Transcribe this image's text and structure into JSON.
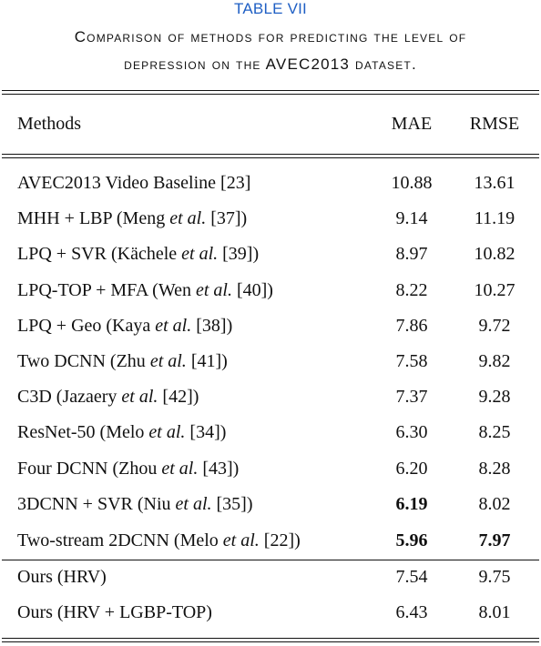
{
  "caption": {
    "label": "TABLE VII",
    "line1": "Comparison of methods for predicting the level of",
    "line2": "depression on the AVEC2013 dataset."
  },
  "table": {
    "headers": {
      "method": "Methods",
      "mae": "MAE",
      "rmse": "RMSE"
    },
    "rows": [
      {
        "pre": "AVEC2013 Video Baseline [23]",
        "em": "",
        "post": "",
        "mae": "10.88",
        "rmse": "13.61",
        "mae_bold": false,
        "rmse_bold": false
      },
      {
        "pre": "MHH + LBP (Meng ",
        "em": "et al.",
        "post": " [37])",
        "mae": "9.14",
        "rmse": "11.19",
        "mae_bold": false,
        "rmse_bold": false
      },
      {
        "pre": "LPQ + SVR (Kächele ",
        "em": "et al.",
        "post": " [39])",
        "mae": "8.97",
        "rmse": "10.82",
        "mae_bold": false,
        "rmse_bold": false
      },
      {
        "pre": "LPQ-TOP + MFA (Wen ",
        "em": "et al.",
        "post": " [40])",
        "mae": "8.22",
        "rmse": "10.27",
        "mae_bold": false,
        "rmse_bold": false
      },
      {
        "pre": "LPQ + Geo (Kaya ",
        "em": "et al.",
        "post": " [38])",
        "mae": "7.86",
        "rmse": "9.72",
        "mae_bold": false,
        "rmse_bold": false
      },
      {
        "pre": "Two DCNN (Zhu ",
        "em": "et al.",
        "post": " [41])",
        "mae": "7.58",
        "rmse": "9.82",
        "mae_bold": false,
        "rmse_bold": false
      },
      {
        "pre": "C3D (Jazaery ",
        "em": "et al.",
        "post": " [42])",
        "mae": "7.37",
        "rmse": "9.28",
        "mae_bold": false,
        "rmse_bold": false
      },
      {
        "pre": "ResNet-50 (Melo ",
        "em": "et al.",
        "post": " [34])",
        "mae": "6.30",
        "rmse": "8.25",
        "mae_bold": false,
        "rmse_bold": false
      },
      {
        "pre": "Four DCNN (Zhou ",
        "em": "et al.",
        "post": " [43])",
        "mae": "6.20",
        "rmse": "8.28",
        "mae_bold": false,
        "rmse_bold": false
      },
      {
        "pre": "3DCNN + SVR (Niu ",
        "em": "et al.",
        "post": " [35])",
        "mae": "6.19",
        "rmse": "8.02",
        "mae_bold": true,
        "rmse_bold": false
      },
      {
        "pre": "Two-stream 2DCNN (Melo ",
        "em": "et al.",
        "post": " [22])",
        "mae": "5.96",
        "rmse": "7.97",
        "mae_bold": true,
        "rmse_bold": true
      },
      {
        "pre": "Ours (HRV)",
        "em": "",
        "post": "",
        "mae": "7.54",
        "rmse": "9.75",
        "mae_bold": false,
        "rmse_bold": false
      },
      {
        "pre": "Ours (HRV + LGBP-TOP)",
        "em": "",
        "post": "",
        "mae": "6.43",
        "rmse": "8.01",
        "mae_bold": false,
        "rmse_bold": false
      }
    ]
  }
}
